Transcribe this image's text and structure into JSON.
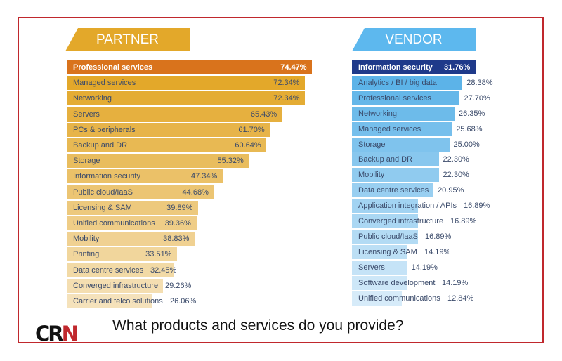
{
  "title": "What products and services do you provide?",
  "logo": "CRN",
  "colors": {
    "frame": "#c0282d",
    "partner_header": "#e3a82a",
    "vendor_header": "#5db8ee",
    "partner_top": "#d9731c",
    "vendor_top": "#1f3a8a"
  },
  "chart_data": [
    {
      "type": "bar",
      "orientation": "horizontal",
      "title": "PARTNER",
      "categories": [
        "Professional services",
        "Managed services",
        "Networking",
        "Servers",
        "PCs & peripherals",
        "Backup and DR",
        "Storage",
        "Information security",
        "Public cloud/IaaS",
        "Licensing & SAM",
        "Unified communications",
        "Mobility",
        "Printing",
        "Data centre services",
        "Converged infrastructure",
        "Carrier and telco solutions"
      ],
      "values": [
        74.47,
        72.34,
        72.34,
        65.43,
        61.7,
        60.64,
        55.32,
        47.34,
        44.68,
        39.89,
        39.36,
        38.83,
        33.51,
        32.45,
        29.26,
        26.06
      ],
      "labels": [
        "74.47%",
        "72.34%",
        "72.34%",
        "65.43%",
        "61.70%",
        "60.64%",
        "55.32%",
        "47.34%",
        "44.68%",
        "39.89%",
        "39.36%",
        "38.83%",
        "33.51%",
        "32.45%",
        "29.26%",
        "26.06%"
      ]
    },
    {
      "type": "bar",
      "orientation": "horizontal",
      "title": "VENDOR",
      "categories": [
        "Information security",
        "Analytics / BI / big data",
        "Professional services",
        "Networking",
        "Managed services",
        "Storage",
        "Backup and DR",
        "Mobility",
        "Data centre services",
        "Application integration / APIs",
        "Converged infrastructure",
        "Public cloud/IaaS",
        "Licensing & SAM",
        "Servers",
        "Software development",
        "Unified communications"
      ],
      "values": [
        31.76,
        28.38,
        27.7,
        26.35,
        25.68,
        25.0,
        22.3,
        22.3,
        20.95,
        16.89,
        16.89,
        16.89,
        14.19,
        14.19,
        14.19,
        12.84
      ],
      "labels": [
        "31.76%",
        "28.38%",
        "27.70%",
        "26.35%",
        "25.68%",
        "25.00%",
        "22.30%",
        "22.30%",
        "20.95%",
        "16.89%",
        "16.89%",
        "16.89%",
        "14.19%",
        "14.19%",
        "14.19%",
        "12.84%"
      ]
    }
  ]
}
